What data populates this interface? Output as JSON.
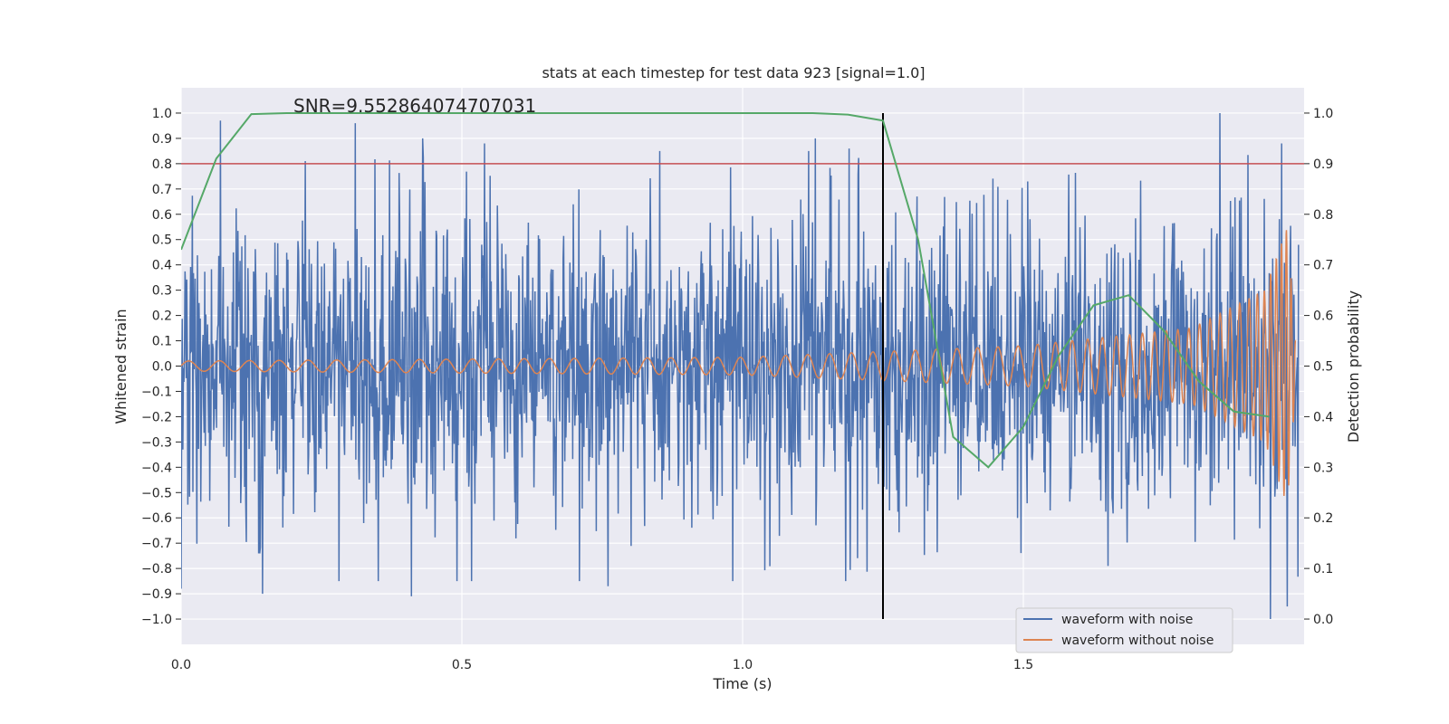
{
  "chart_data": {
    "type": "line",
    "title": "stats at each timestep for test data 923 [signal=1.0]",
    "xlabel": "Time (s)",
    "ylabel": "Whitened strain",
    "y2label": "Detection probability",
    "annotation": "SNR=9.552864074707031",
    "xlim": [
      0.0,
      2.0
    ],
    "ylim": [
      -1.1,
      1.1
    ],
    "y2lim": [
      -0.05,
      1.05
    ],
    "x_ticks": [
      0.0,
      0.5,
      1.0,
      1.5
    ],
    "x_tick_labels": [
      "0.0",
      "0.5",
      "1.0",
      "1.5"
    ],
    "y_ticks": [
      -1.0,
      -0.9,
      -0.8,
      -0.7,
      -0.6,
      -0.5,
      -0.4,
      -0.3,
      -0.2,
      -0.1,
      0.0,
      0.1,
      0.2,
      0.3,
      0.4,
      0.5,
      0.6,
      0.7,
      0.8,
      0.9,
      1.0
    ],
    "y_tick_labels": [
      "−1.0",
      "−0.9",
      "−0.8",
      "−0.7",
      "−0.6",
      "−0.5",
      "−0.4",
      "−0.3",
      "−0.2",
      "−0.1",
      "0.0",
      "0.1",
      "0.2",
      "0.3",
      "0.4",
      "0.5",
      "0.6",
      "0.7",
      "0.8",
      "0.9",
      "1.0"
    ],
    "y2_ticks": [
      0.0,
      0.1,
      0.2,
      0.3,
      0.4,
      0.5,
      0.6,
      0.7,
      0.8,
      0.9,
      1.0
    ],
    "y2_tick_labels": [
      "0.0",
      "0.1",
      "0.2",
      "0.3",
      "0.4",
      "0.5",
      "0.6",
      "0.7",
      "0.8",
      "0.9",
      "1.0"
    ],
    "grid": true,
    "legend_position": "bottom-right",
    "series": [
      {
        "name": "waveform with noise",
        "color": "#4c72b0",
        "axis": "left",
        "description_x_range": [
          0.0,
          1.99
        ],
        "approx_std": 0.3,
        "notable_points": [
          {
            "x": 0.0,
            "y": -0.88
          },
          {
            "x": 0.07,
            "y": 0.97
          },
          {
            "x": 0.145,
            "y": -0.9
          },
          {
            "x": 0.31,
            "y": 0.96
          },
          {
            "x": 0.41,
            "y": -0.91
          },
          {
            "x": 0.43,
            "y": 0.9
          },
          {
            "x": 0.54,
            "y": 0.88
          },
          {
            "x": 0.76,
            "y": -0.87
          },
          {
            "x": 1.13,
            "y": 0.9
          },
          {
            "x": 1.19,
            "y": 0.86
          },
          {
            "x": 1.85,
            "y": 1.0
          },
          {
            "x": 1.94,
            "y": -1.0
          },
          {
            "x": 1.96,
            "y": 0.88
          },
          {
            "x": 1.97,
            "y": -0.95
          }
        ]
      },
      {
        "name": "waveform without noise",
        "color": "#dd8452",
        "axis": "left",
        "description": "chirp waveform with increasing amplitude and frequency, merger near x=1.97",
        "envelope": [
          {
            "x": 0.0,
            "amp": 0.02
          },
          {
            "x": 1.0,
            "amp": 0.035
          },
          {
            "x": 1.5,
            "amp": 0.08
          },
          {
            "x": 1.8,
            "amp": 0.15
          },
          {
            "x": 1.93,
            "amp": 0.3
          },
          {
            "x": 1.97,
            "amp": 0.55
          },
          {
            "x": 1.985,
            "amp": 0.1
          }
        ],
        "frequency_hz": [
          {
            "x": 0.0,
            "f": 18
          },
          {
            "x": 1.5,
            "f": 28
          },
          {
            "x": 1.9,
            "f": 60
          },
          {
            "x": 1.97,
            "f": 120
          }
        ]
      },
      {
        "name": "",
        "color": "#55a868",
        "axis": "right",
        "x": [
          0.0,
          0.0625,
          0.125,
          0.1875,
          0.25,
          0.5,
          0.75,
          1.0,
          1.125,
          1.1875,
          1.25,
          1.3125,
          1.375,
          1.4375,
          1.5,
          1.5625,
          1.625,
          1.6875,
          1.75,
          1.8125,
          1.875,
          1.9375
        ],
        "y": [
          0.73,
          0.91,
          0.998,
          1.0,
          1.0,
          1.0,
          1.0,
          1.0,
          1.0,
          0.997,
          0.985,
          0.75,
          0.36,
          0.3,
          0.38,
          0.52,
          0.62,
          0.64,
          0.57,
          0.47,
          0.41,
          0.4
        ]
      }
    ],
    "reference_lines": [
      {
        "orientation": "horizontal",
        "axis": "right",
        "value": 0.9,
        "color": "#c44e52"
      },
      {
        "orientation": "vertical",
        "value": 1.25,
        "ymin": -1.0,
        "ymax": 1.0,
        "color": "#000000"
      }
    ],
    "legend": [
      {
        "label": "waveform with noise",
        "color": "#4c72b0"
      },
      {
        "label": "waveform without noise",
        "color": "#dd8452"
      }
    ]
  }
}
